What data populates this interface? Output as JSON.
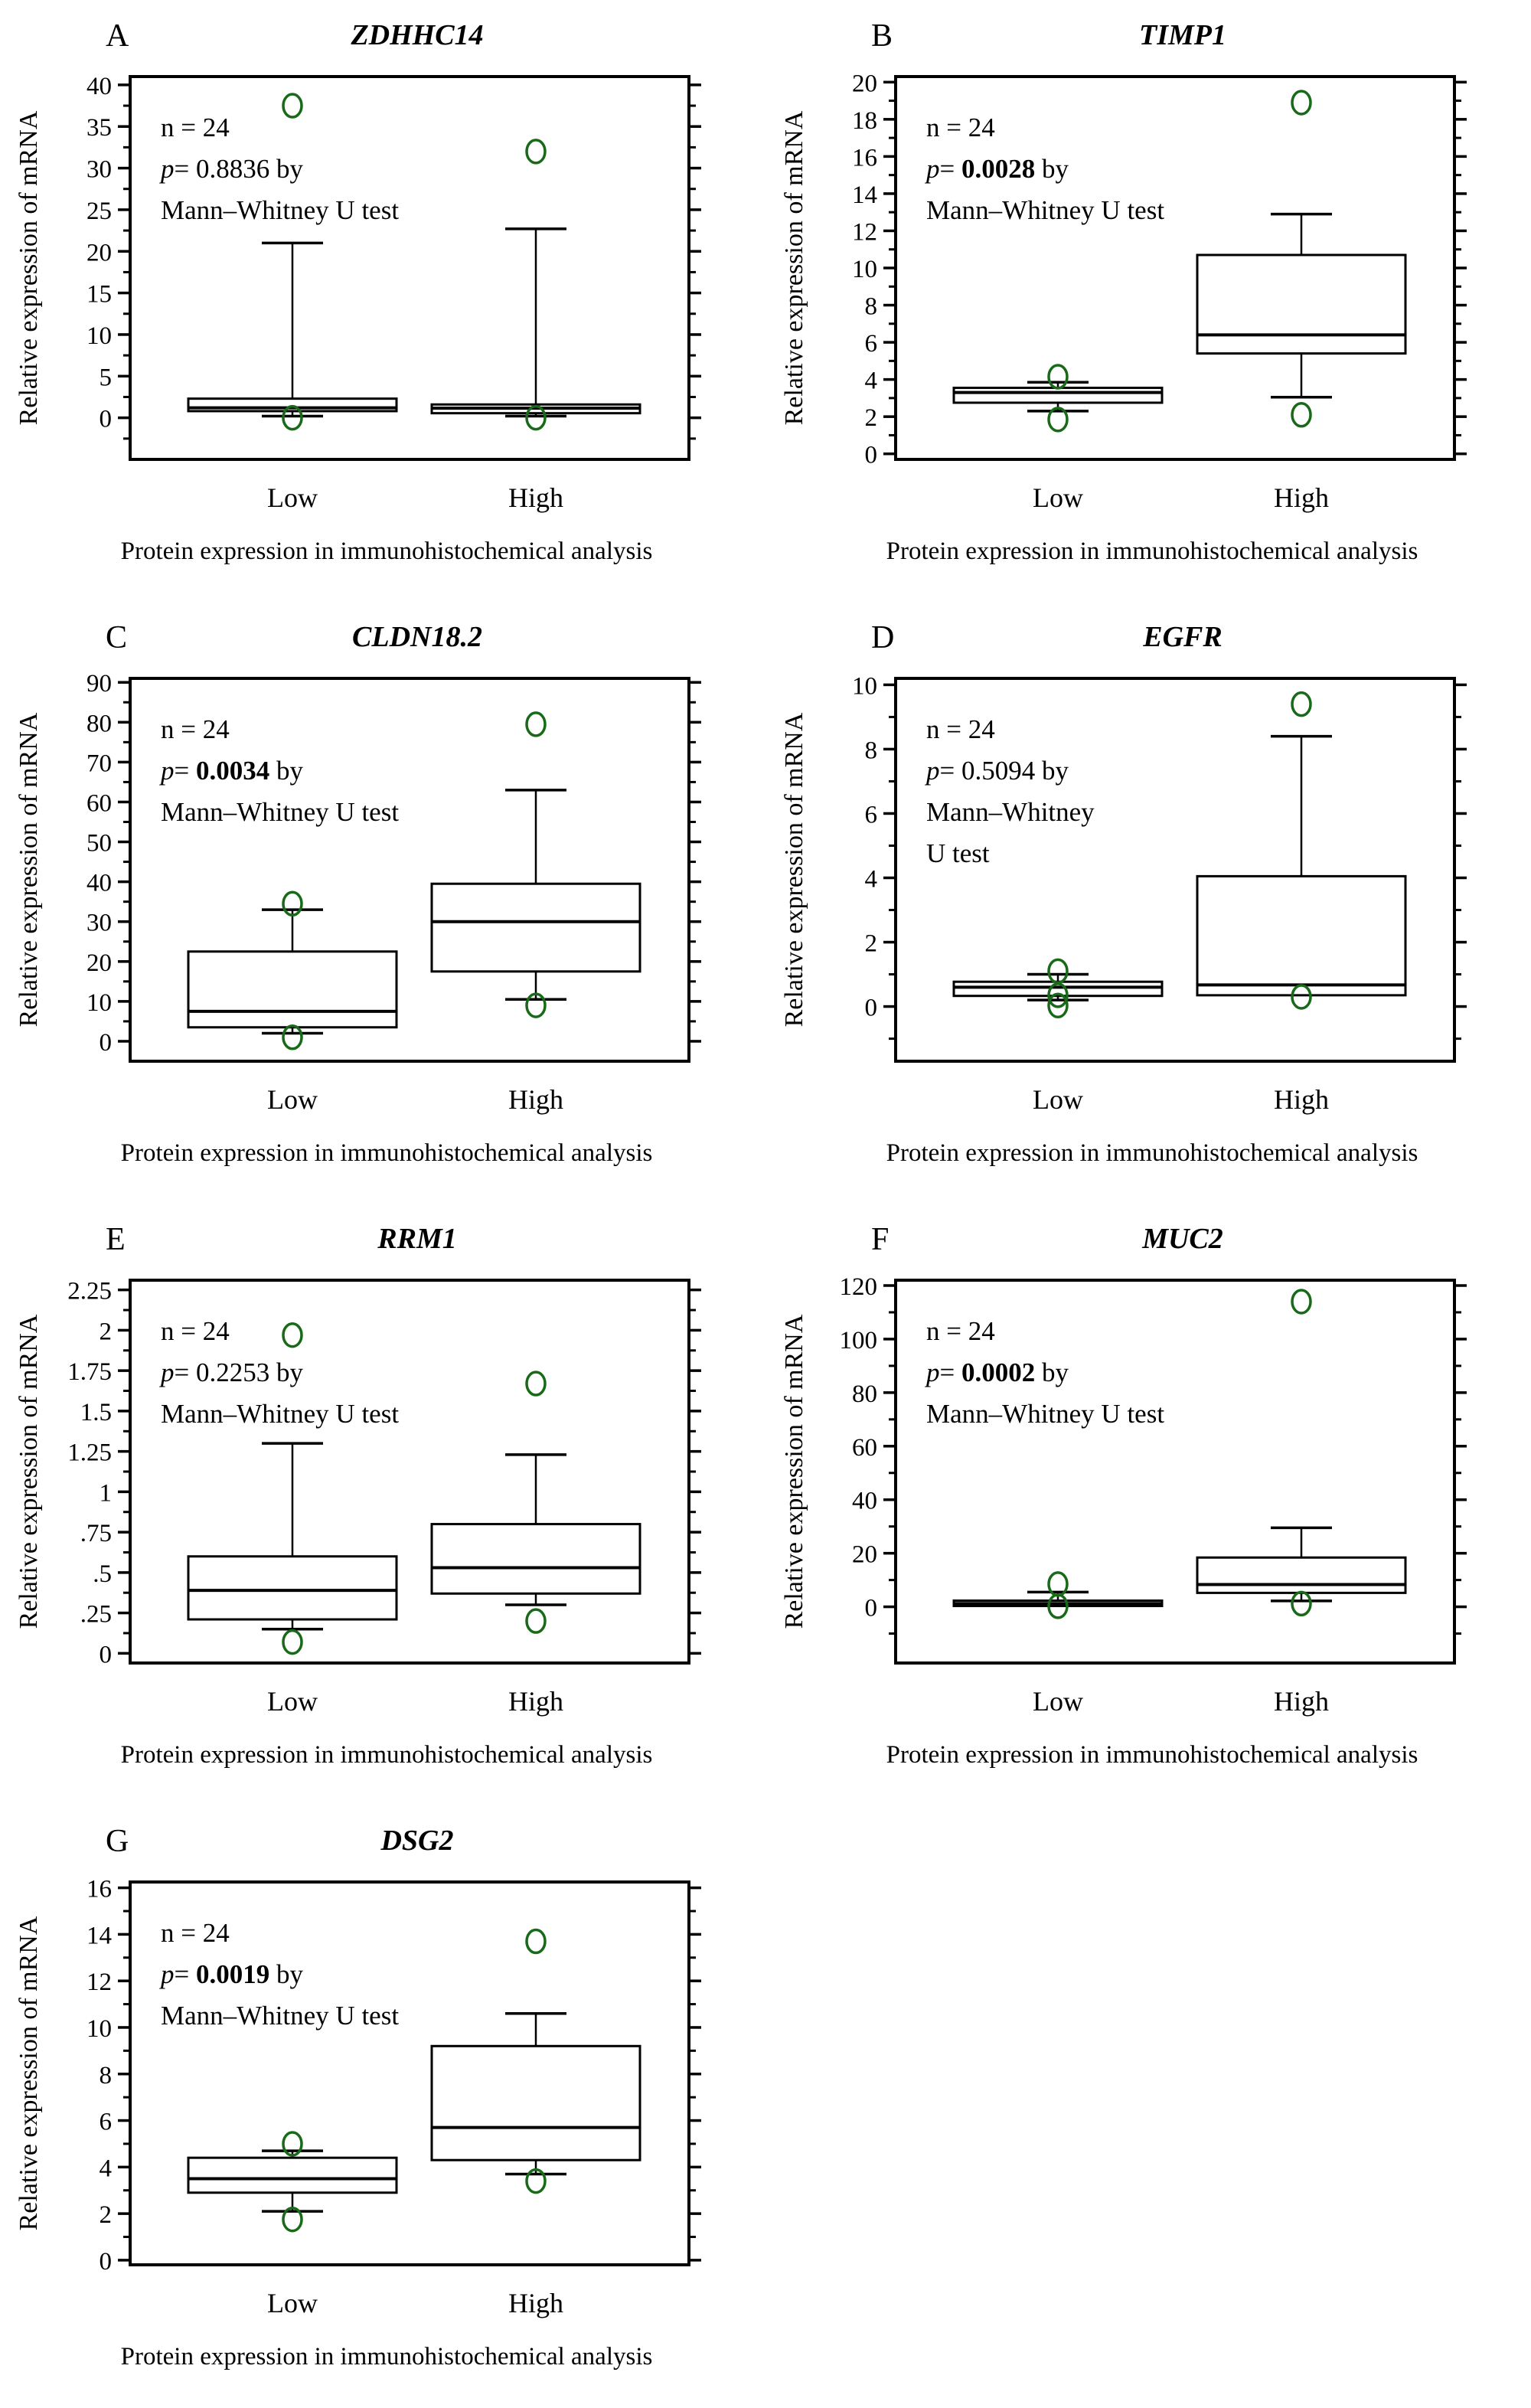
{
  "y_title": "Relative expression of mRNA",
  "chart_data": {
    "type": "box",
    "outlier_color": "#186a18",
    "line_color": "#000000",
    "y_title": "Relative expression of mRNA",
    "panels": [
      {
        "letter": "A",
        "gene": "ZDHHC14",
        "caption": "Protein expression in immunohistochemical analysis",
        "stats": {
          "n_label": "n = 24",
          "p_char": "p",
          "p_rest": "= ",
          "p_value": "0.8836",
          "p_bold": false,
          "p_suffix": " by",
          "test_lines": [
            "Mann–Whitney U test"
          ]
        },
        "y_axis": {
          "min": -5,
          "max": 41,
          "major": 5,
          "minor": 2.5,
          "ticks": [
            {
              "v": 40,
              "t": "40"
            },
            {
              "v": 35,
              "t": "35"
            },
            {
              "v": 30,
              "t": "30"
            },
            {
              "v": 25,
              "t": "25"
            },
            {
              "v": 20,
              "t": "20"
            },
            {
              "v": 15,
              "t": "15"
            },
            {
              "v": 10,
              "t": "10"
            },
            {
              "v": 5,
              "t": "5"
            },
            {
              "v": 0,
              "t": "0"
            }
          ]
        },
        "groups": [
          {
            "label": "Low",
            "whisker_low": 0.2,
            "q1": 0.8,
            "median": 1.2,
            "q3": 2.3,
            "whisker_high": 21.0,
            "outliers": [
              37.5,
              0.0
            ]
          },
          {
            "label": "High",
            "whisker_low": 0.2,
            "q1": 0.55,
            "median": 1.15,
            "q3": 1.6,
            "whisker_high": 22.7,
            "outliers": [
              32.0,
              0.0
            ]
          }
        ]
      },
      {
        "letter": "B",
        "gene": "TIMP1",
        "caption": "Protein expression in immunohistochemical analysis",
        "stats": {
          "n_label": "n = 24",
          "p_char": "p",
          "p_rest": "= ",
          "p_value": "0.0028",
          "p_bold": true,
          "p_suffix": " by",
          "test_lines": [
            "Mann–Whitney U test"
          ]
        },
        "y_axis": {
          "min": -0.3,
          "max": 20.3,
          "major": 2,
          "minor": 1,
          "ticks": [
            {
              "v": 20,
              "t": "20"
            },
            {
              "v": 18,
              "t": "18"
            },
            {
              "v": 16,
              "t": "16"
            },
            {
              "v": 14,
              "t": "14"
            },
            {
              "v": 12,
              "t": "12"
            },
            {
              "v": 10,
              "t": "10"
            },
            {
              "v": 8,
              "t": "8"
            },
            {
              "v": 6,
              "t": "6"
            },
            {
              "v": 4,
              "t": "4"
            },
            {
              "v": 2,
              "t": "2"
            },
            {
              "v": 0,
              "t": "0"
            }
          ]
        },
        "groups": [
          {
            "label": "Low",
            "whisker_low": 2.3,
            "q1": 2.75,
            "median": 3.3,
            "q3": 3.55,
            "whisker_high": 3.85,
            "outliers": [
              4.15,
              1.85
            ]
          },
          {
            "label": "High",
            "whisker_low": 3.05,
            "q1": 5.4,
            "median": 6.4,
            "q3": 10.7,
            "whisker_high": 12.9,
            "outliers": [
              18.9,
              2.1
            ]
          }
        ]
      },
      {
        "letter": "C",
        "gene": "CLDN18.2",
        "caption": "Protein expression in immunohistochemical analysis",
        "stats": {
          "n_label": "n = 24",
          "p_char": "p",
          "p_rest": "= ",
          "p_value": "0.0034",
          "p_bold": true,
          "p_suffix": " by",
          "test_lines": [
            "Mann–Whitney U test"
          ]
        },
        "y_axis": {
          "min": -5,
          "max": 91,
          "major": 10,
          "minor": 5,
          "ticks": [
            {
              "v": 90,
              "t": "90"
            },
            {
              "v": 80,
              "t": "80"
            },
            {
              "v": 70,
              "t": "70"
            },
            {
              "v": 60,
              "t": "60"
            },
            {
              "v": 50,
              "t": "50"
            },
            {
              "v": 40,
              "t": "40"
            },
            {
              "v": 30,
              "t": "30"
            },
            {
              "v": 20,
              "t": "20"
            },
            {
              "v": 10,
              "t": "10"
            },
            {
              "v": 0,
              "t": "0"
            }
          ]
        },
        "groups": [
          {
            "label": "Low",
            "whisker_low": 2.0,
            "q1": 3.5,
            "median": 7.5,
            "q3": 22.5,
            "whisker_high": 33.0,
            "outliers": [
              34.5,
              1.0
            ]
          },
          {
            "label": "High",
            "whisker_low": 10.5,
            "q1": 17.5,
            "median": 30.0,
            "q3": 39.5,
            "whisker_high": 63.0,
            "outliers": [
              79.5,
              9.0
            ]
          }
        ]
      },
      {
        "letter": "D",
        "gene": "EGFR",
        "caption": "Protein expression in immunohistochemical analysis",
        "stats": {
          "n_label": "n = 24",
          "p_char": "p",
          "p_rest": "= ",
          "p_value": "0.5094",
          "p_bold": false,
          "p_suffix": " by",
          "test_lines": [
            "Mann–Whitney",
            "U test"
          ]
        },
        "y_axis": {
          "min": -1.7,
          "max": 10.2,
          "major": 2,
          "minor": 1,
          "ticks": [
            {
              "v": 10,
              "t": "10"
            },
            {
              "v": 8,
              "t": "8"
            },
            {
              "v": 6,
              "t": "6"
            },
            {
              "v": 4,
              "t": "4"
            },
            {
              "v": 2,
              "t": "2"
            },
            {
              "v": 0,
              "t": "0"
            }
          ]
        },
        "groups": [
          {
            "label": "Low",
            "whisker_low": 0.2,
            "q1": 0.33,
            "median": 0.6,
            "q3": 0.77,
            "whisker_high": 1.0,
            "outliers": [
              1.1,
              0.35,
              0.03
            ]
          },
          {
            "label": "High",
            "whisker_low": null,
            "q1": 0.35,
            "median": 0.67,
            "q3": 4.05,
            "whisker_high": 8.4,
            "outliers": [
              9.4,
              0.3
            ]
          }
        ]
      },
      {
        "letter": "E",
        "gene": "RRM1",
        "caption": "Protein expression in immunohistochemical analysis",
        "stats": {
          "n_label": "n = 24",
          "p_char": "p",
          "p_rest": "= ",
          "p_value": "0.2253",
          "p_bold": false,
          "p_suffix": " by",
          "test_lines": [
            "Mann–Whitney U test"
          ]
        },
        "y_axis": {
          "min": -0.06,
          "max": 2.31,
          "major": 0.25,
          "minor": 0.125,
          "ticks": [
            {
              "v": 2.25,
              "t": "2.25"
            },
            {
              "v": 2,
              "t": "2"
            },
            {
              "v": 1.75,
              "t": "1.75"
            },
            {
              "v": 1.5,
              "t": "1.5"
            },
            {
              "v": 1.25,
              "t": "1.25"
            },
            {
              "v": 1,
              "t": "1"
            },
            {
              "v": 0.75,
              "t": ".75"
            },
            {
              "v": 0.5,
              "t": ".5"
            },
            {
              "v": 0.25,
              "t": ".25"
            },
            {
              "v": 0,
              "t": "0"
            }
          ]
        },
        "groups": [
          {
            "label": "Low",
            "whisker_low": 0.15,
            "q1": 0.21,
            "median": 0.39,
            "q3": 0.6,
            "whisker_high": 1.3,
            "outliers": [
              1.97,
              0.07
            ]
          },
          {
            "label": "High",
            "whisker_low": 0.3,
            "q1": 0.37,
            "median": 0.53,
            "q3": 0.8,
            "whisker_high": 1.23,
            "outliers": [
              1.67,
              0.2
            ]
          }
        ]
      },
      {
        "letter": "F",
        "gene": "MUC2",
        "caption": "Protein expression in immunohistochemical analysis",
        "stats": {
          "n_label": "n = 24",
          "p_char": "p",
          "p_rest": "= ",
          "p_value": "0.0002",
          "p_bold": true,
          "p_suffix": " by",
          "test_lines": [
            "Mann–Whitney U test"
          ]
        },
        "y_axis": {
          "min": -21,
          "max": 122,
          "major": 20,
          "minor": 10,
          "ticks": [
            {
              "v": 120,
              "t": "120"
            },
            {
              "v": 100,
              "t": "100"
            },
            {
              "v": 80,
              "t": "80"
            },
            {
              "v": 60,
              "t": "60"
            },
            {
              "v": 40,
              "t": "40"
            },
            {
              "v": 20,
              "t": "20"
            },
            {
              "v": 0,
              "t": "0"
            }
          ]
        },
        "groups": [
          {
            "label": "Low",
            "whisker_low": null,
            "q1": 0.3,
            "median": 1.2,
            "q3": 2.3,
            "whisker_high": 5.5,
            "outliers": [
              8.5,
              0.2
            ]
          },
          {
            "label": "High",
            "whisker_low": 2.2,
            "q1": 5.2,
            "median": 8.3,
            "q3": 18.4,
            "whisker_high": 29.5,
            "outliers": [
              114.0,
              1.2
            ]
          }
        ]
      },
      {
        "letter": "G",
        "gene": "DSG2",
        "caption": "Protein expression in immunohistochemical analysis",
        "stats": {
          "n_label": "n = 24",
          "p_char": "p",
          "p_rest": "= ",
          "p_value": "0.0019",
          "p_bold": true,
          "p_suffix": " by",
          "test_lines": [
            "Mann–Whitney U test"
          ]
        },
        "y_axis": {
          "min": -0.2,
          "max": 16.25,
          "major": 2,
          "minor": 1,
          "ticks": [
            {
              "v": 16,
              "t": "16"
            },
            {
              "v": 14,
              "t": "14"
            },
            {
              "v": 12,
              "t": "12"
            },
            {
              "v": 10,
              "t": "10"
            },
            {
              "v": 8,
              "t": "8"
            },
            {
              "v": 6,
              "t": "6"
            },
            {
              "v": 4,
              "t": "4"
            },
            {
              "v": 2,
              "t": "2"
            },
            {
              "v": 0,
              "t": "0"
            }
          ]
        },
        "groups": [
          {
            "label": "Low",
            "whisker_low": 2.1,
            "q1": 2.9,
            "median": 3.5,
            "q3": 4.4,
            "whisker_high": 4.7,
            "outliers": [
              5.0,
              1.75
            ]
          },
          {
            "label": "High",
            "whisker_low": 3.7,
            "q1": 4.3,
            "median": 5.7,
            "q3": 9.2,
            "whisker_high": 10.6,
            "outliers": [
              13.7,
              3.4
            ]
          }
        ]
      }
    ]
  }
}
